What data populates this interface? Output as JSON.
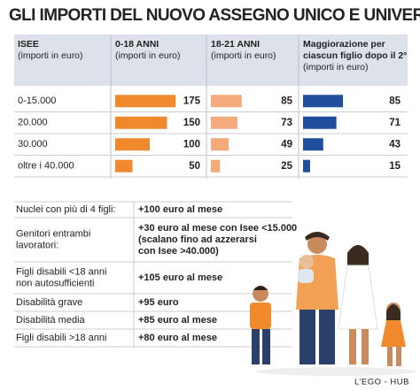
{
  "title": "GLI IMPORTI DEL NUOVO ASSEGNO UNICO E UNIVERSALE",
  "table": {
    "header": [
      [
        "ISEE",
        "(importi in euro)"
      ],
      [
        "0-18 ANNI",
        "(importi in euro)"
      ],
      [
        "18-21 ANNI",
        "(importi in euro)"
      ],
      [
        "Maggiorazione per",
        "ciascun figlio dopo il 2°",
        "(importi in euro)"
      ]
    ],
    "rows": [
      [
        "0-15.000",
        175,
        85,
        85
      ],
      [
        "20.000",
        150,
        73,
        71
      ],
      [
        "30.000",
        100,
        49,
        43
      ],
      [
        "oltre i 40.000",
        50,
        25,
        15
      ]
    ],
    "colors": [
      "#f0892e",
      "#f4aa7c",
      "#1f4e9c"
    ]
  },
  "notes": [
    {
      "label": [
        "Nuclei con più di 4 figli:"
      ],
      "text": [
        "+100 euro al mese"
      ]
    },
    {
      "label": [
        "Genitori entrambi",
        "lavoratori:"
      ],
      "text": [
        "+30 euro al mese con Isee <15.000",
        "(scalano fino ad azzerarsi",
        "con Isee >40.000)"
      ]
    },
    {
      "label": [
        "Figli disabili <18 anni",
        "non autosufficienti"
      ],
      "text": [
        "+105 euro al mese"
      ]
    },
    {
      "label": [
        "Disabilità grave"
      ],
      "text": [
        "+95 euro"
      ]
    },
    {
      "label": [
        "Disabilità media"
      ],
      "text": [
        "+85 euro al mese"
      ]
    },
    {
      "label": [
        "Figli disabili >18 anni"
      ],
      "text": [
        "+80 euro al mese"
      ]
    }
  ],
  "credit": "L’EGO - HUB"
}
